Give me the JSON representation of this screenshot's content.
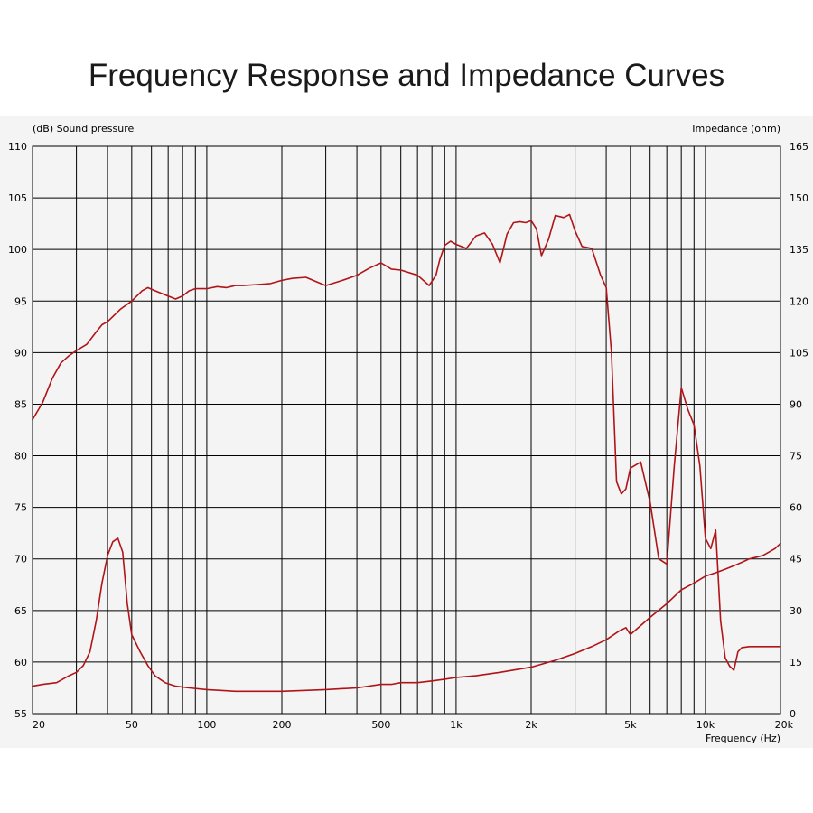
{
  "title": "Frequency Response and Impedance Curves",
  "chart_data": {
    "type": "line",
    "title": "Frequency Response and Impedance Curves",
    "xlabel": "Frequency  (Hz)",
    "ylabel_left": "(dB)  Sound pressure",
    "ylabel_right": "Impedance  (ohm)",
    "xscale": "log",
    "xlim": [
      20,
      20000
    ],
    "ylim_left": [
      55,
      110
    ],
    "ylim_right": [
      0,
      165
    ],
    "x_ticks": [
      {
        "value": 20,
        "label": "20"
      },
      {
        "value": 50,
        "label": "50"
      },
      {
        "value": 100,
        "label": "100"
      },
      {
        "value": 200,
        "label": "200"
      },
      {
        "value": 500,
        "label": "500"
      },
      {
        "value": 1000,
        "label": "1k"
      },
      {
        "value": 2000,
        "label": "2k"
      },
      {
        "value": 5000,
        "label": "5k"
      },
      {
        "value": 10000,
        "label": "10k"
      },
      {
        "value": 20000,
        "label": "20k"
      }
    ],
    "y_ticks_left": [
      {
        "value": 110,
        "label": "110"
      },
      {
        "value": 105,
        "label": "105"
      },
      {
        "value": 100,
        "label": "100"
      },
      {
        "value": 95,
        "label": "95"
      },
      {
        "value": 90,
        "label": "90"
      },
      {
        "value": 85,
        "label": "85"
      },
      {
        "value": 80,
        "label": "80"
      },
      {
        "value": 75,
        "label": "75"
      },
      {
        "value": 70,
        "label": "70"
      },
      {
        "value": 65,
        "label": "65"
      },
      {
        "value": 60,
        "label": "60"
      },
      {
        "value": 55,
        "label": "55"
      }
    ],
    "y_ticks_right": [
      {
        "value": 165,
        "label": "165"
      },
      {
        "value": 150,
        "label": "150"
      },
      {
        "value": 135,
        "label": "135"
      },
      {
        "value": 120,
        "label": "120"
      },
      {
        "value": 105,
        "label": "105"
      },
      {
        "value": 90,
        "label": "90"
      },
      {
        "value": 75,
        "label": "75"
      },
      {
        "value": 60,
        "label": "60"
      },
      {
        "value": 45,
        "label": "45"
      },
      {
        "value": 30,
        "label": "30"
      },
      {
        "value": 15,
        "label": "15"
      },
      {
        "value": 0,
        "label": "0"
      }
    ],
    "grid": true,
    "line_color": "#b01418",
    "series": [
      {
        "name": "Sound pressure",
        "axis": "left",
        "x": [
          20,
          22,
          24,
          26,
          28,
          30,
          33,
          36,
          38,
          40,
          45,
          50,
          55,
          58,
          62,
          68,
          75,
          80,
          85,
          90,
          100,
          110,
          120,
          130,
          140,
          160,
          180,
          200,
          220,
          250,
          280,
          300,
          350,
          400,
          450,
          500,
          550,
          600,
          700,
          780,
          830,
          860,
          900,
          950,
          1000,
          1100,
          1200,
          1300,
          1400,
          1500,
          1600,
          1700,
          1800,
          1900,
          2000,
          2100,
          2200,
          2350,
          2500,
          2700,
          2850,
          3000,
          3200,
          3500,
          3800,
          4000,
          4200,
          4400,
          4600,
          4800,
          5000,
          5500,
          5800,
          6000,
          6500,
          7000,
          7500,
          8000,
          8500,
          9000,
          9500,
          10000,
          10500,
          11000,
          11500,
          12000,
          12500,
          13000,
          13500,
          14000,
          15000,
          16000,
          17000,
          18000,
          19000,
          20000
        ],
        "y": [
          83.5,
          85.2,
          87.5,
          89.0,
          89.7,
          90.2,
          90.8,
          92.0,
          92.7,
          93.0,
          94.2,
          95.0,
          96.0,
          96.3,
          96.0,
          95.6,
          95.2,
          95.5,
          96.0,
          96.2,
          96.2,
          96.4,
          96.3,
          96.5,
          96.5,
          96.6,
          96.7,
          97.0,
          97.2,
          97.3,
          96.8,
          96.5,
          97.0,
          97.5,
          98.2,
          98.7,
          98.1,
          98.0,
          97.5,
          96.5,
          97.5,
          99.0,
          100.4,
          100.8,
          100.5,
          100.1,
          101.3,
          101.6,
          100.5,
          98.7,
          101.5,
          102.6,
          102.7,
          102.6,
          102.8,
          102.0,
          99.4,
          101.0,
          103.3,
          103.1,
          103.4,
          101.8,
          100.3,
          100.1,
          97.5,
          96.3,
          90.0,
          77.5,
          76.3,
          76.8,
          78.8,
          79.4,
          77.0,
          75.5,
          70.0,
          69.5,
          79.0,
          86.6,
          84.5,
          83.0,
          79.0,
          72.0,
          71.0,
          72.8,
          64.0,
          60.4,
          59.6,
          59.2,
          61.0,
          61.4,
          61.5,
          61.5,
          61.5,
          61.5,
          61.5,
          61.5
        ]
      },
      {
        "name": "Impedance",
        "axis": "right",
        "x": [
          20,
          22,
          25,
          28,
          30,
          32,
          34,
          36,
          38,
          40,
          42,
          44,
          46,
          48,
          50,
          54,
          58,
          62,
          68,
          75,
          85,
          100,
          130,
          200,
          300,
          400,
          500,
          550,
          600,
          700,
          800,
          900,
          1000,
          1200,
          1500,
          2000,
          2500,
          3000,
          3500,
          4000,
          4500,
          4800,
          5000,
          6000,
          7000,
          8000,
          9000,
          10000,
          11000,
          12000,
          13000,
          14000,
          15000,
          16000,
          17000,
          18000,
          19000,
          20000
        ],
        "y": [
          8,
          8.5,
          9,
          11,
          12,
          14,
          18,
          27,
          38,
          46,
          50,
          51,
          47,
          32,
          23,
          18,
          14,
          11,
          9,
          8,
          7.5,
          7,
          6.5,
          6.5,
          7,
          7.5,
          8.5,
          8.5,
          9,
          9,
          9.5,
          10,
          10.5,
          11,
          12,
          13.5,
          15.5,
          17.5,
          19.5,
          21.5,
          24,
          25,
          23,
          28,
          32,
          36,
          38,
          40,
          41,
          42,
          43,
          44,
          45,
          45.5,
          46,
          47,
          48,
          49.5
        ]
      }
    ]
  }
}
